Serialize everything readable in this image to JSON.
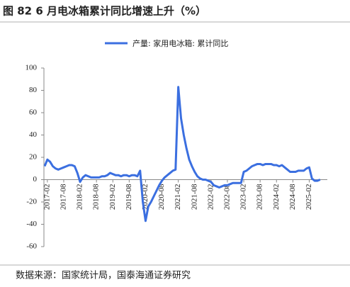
{
  "chart_data": {
    "type": "line",
    "title": "图 82 6 月电冰箱累计同比增速上升（%）",
    "source": "数据来源：国家统计局，国泰海通证券研究",
    "categories": [
      null,
      "2017-02",
      null,
      null,
      null,
      null,
      null,
      "2017-08",
      null,
      null,
      null,
      null,
      null,
      "2018-02",
      null,
      null,
      null,
      null,
      null,
      "2018-08",
      null,
      null,
      null,
      null,
      null,
      "2019-02",
      null,
      null,
      null,
      null,
      null,
      "2019-08",
      null,
      null,
      null,
      null,
      null,
      "2020-02",
      null,
      null,
      null,
      null,
      null,
      "2020-08",
      null,
      null,
      null,
      null,
      null,
      "2021-02",
      null,
      null,
      null,
      null,
      null,
      "2021-08",
      null,
      null,
      null,
      null,
      null,
      "2022-02",
      null,
      null,
      null,
      null,
      null,
      "2022-08",
      null,
      null,
      null,
      null,
      null,
      "2023-02",
      null,
      null,
      null,
      null,
      null,
      "2023-08",
      null,
      null,
      null,
      null,
      null,
      "2024-02",
      null,
      null,
      null,
      null,
      null,
      "2024-08",
      null,
      null,
      null,
      null,
      null,
      "2025-02",
      null,
      null,
      null,
      null
    ],
    "series": [
      {
        "name": "产量: 家用电冰箱: 累计同比",
        "color": "#3b6fe0",
        "values": [
          12,
          18,
          16,
          12,
          10,
          9,
          10,
          11,
          12,
          13,
          13,
          12,
          6,
          -2,
          2,
          4,
          3,
          2,
          2,
          2,
          2,
          3,
          3,
          4,
          6,
          5,
          4,
          4,
          3,
          4,
          4,
          3,
          4,
          4,
          3,
          8,
          -20,
          -37,
          -24,
          -20,
          -15,
          -10,
          -5,
          -1,
          2,
          4,
          6,
          8,
          9,
          83,
          55,
          40,
          28,
          18,
          12,
          7,
          3,
          1,
          0,
          0,
          -1,
          -2,
          -5,
          -6,
          -7,
          -6,
          -5,
          -5,
          -4,
          -3,
          -3,
          -3,
          -3,
          7,
          8,
          10,
          12,
          13,
          14,
          14,
          13,
          14,
          14,
          14,
          13,
          13,
          12,
          13,
          11,
          9,
          7,
          7,
          7,
          8,
          8,
          8,
          10,
          11,
          1,
          -1,
          -1,
          0
        ]
      }
    ],
    "ylim": [
      -60,
      100
    ],
    "yticks": [
      100,
      80,
      60,
      40,
      20,
      0,
      -20,
      -40,
      -60
    ],
    "legend": "top"
  }
}
